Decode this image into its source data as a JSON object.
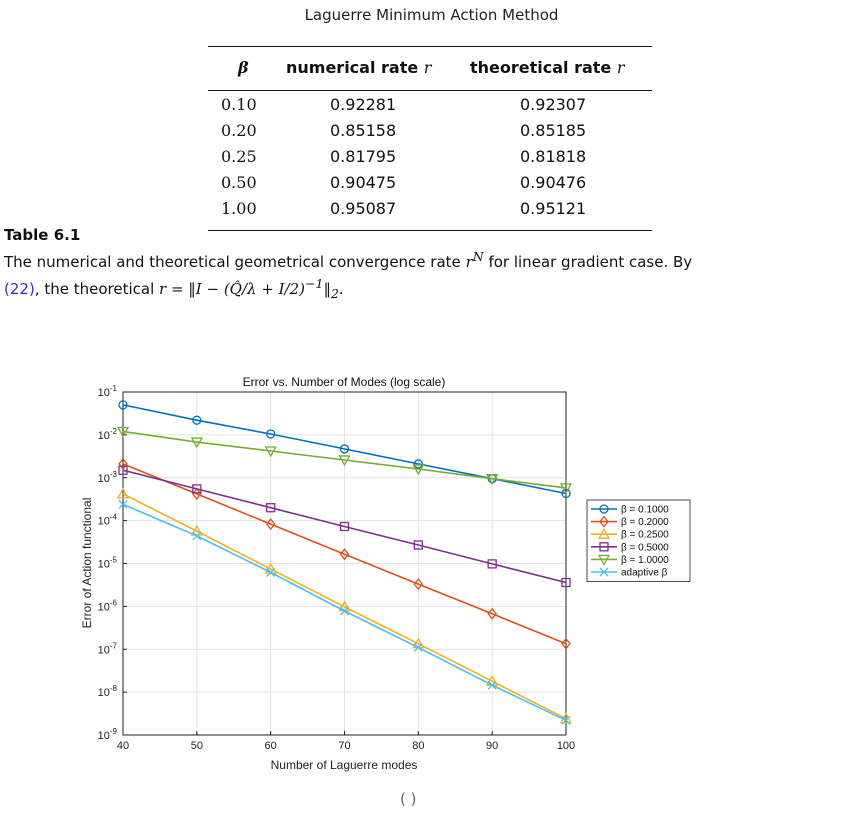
{
  "table": {
    "title": "Laguerre Minimum Action Method",
    "headers": {
      "beta": "β",
      "numerical": "numerical rate",
      "numerical_var": "r",
      "theoretical": "theoretical rate",
      "theoretical_var": "r"
    },
    "rows": [
      {
        "beta": "0.10",
        "numerical": "0.92281",
        "theoretical": "0.92307"
      },
      {
        "beta": "0.20",
        "numerical": "0.85158",
        "theoretical": "0.85185"
      },
      {
        "beta": "0.25",
        "numerical": "0.81795",
        "theoretical": "0.81818"
      },
      {
        "beta": "0.50",
        "numerical": "0.90475",
        "theoretical": "0.90476"
      },
      {
        "beta": "1.00",
        "numerical": "0.95087",
        "theoretical": "0.95121"
      }
    ]
  },
  "caption": {
    "label": "Table 6.1",
    "line1_pre": "The numerical and theoretical geometrical convergence rate",
    "line1_math": "r",
    "line1_sup": "N",
    "line1_post": "for linear gradient case. By",
    "line2_ref": "(22)",
    "line2_text": ", the theoretical",
    "line2_math": "r = ‖I − (Q̂/λ + I/2)",
    "line2_sup": "−1",
    "line2_end": "‖",
    "line2_sub": "2",
    "line2_period": "."
  },
  "chart_data": {
    "type": "line",
    "title": "Error vs. Number of Modes (log scale)",
    "xlabel": "Number of Laguerre modes",
    "ylabel": "Error of Action functional",
    "x": [
      40,
      50,
      60,
      70,
      80,
      90,
      100
    ],
    "xlim": [
      40,
      100
    ],
    "ylim": [
      1e-09,
      0.1
    ],
    "yscale": "log",
    "grid": true,
    "legend_position": "right",
    "x_ticks": [
      "40",
      "50",
      "60",
      "70",
      "80",
      "90",
      "100"
    ],
    "y_ticks": [
      {
        "exp": -9,
        "label": "10",
        "sup": "-9"
      },
      {
        "exp": -8,
        "label": "10",
        "sup": "-8"
      },
      {
        "exp": -7,
        "label": "10",
        "sup": "-7"
      },
      {
        "exp": -6,
        "label": "10",
        "sup": "-6"
      },
      {
        "exp": -5,
        "label": "10",
        "sup": "-5"
      },
      {
        "exp": -4,
        "label": "10",
        "sup": "-4"
      },
      {
        "exp": -3,
        "label": "10",
        "sup": "-3"
      },
      {
        "exp": -2,
        "label": "10",
        "sup": "-2"
      },
      {
        "exp": -1,
        "label": "10",
        "sup": "-1"
      }
    ],
    "series": [
      {
        "name": "β = 0.1000",
        "color": "#0072BD",
        "marker": "circle",
        "values": [
          0.05,
          0.022,
          0.0105,
          0.0047,
          0.0021,
          0.00095,
          0.00043
        ]
      },
      {
        "name": "β = 0.2000",
        "color": "#D95319",
        "marker": "diamond",
        "values": [
          0.0021,
          0.00042,
          8.3e-05,
          1.65e-05,
          3.3e-06,
          6.7e-07,
          1.35e-07
        ]
      },
      {
        "name": "β = 0.2500",
        "color": "#EDB120",
        "marker": "triangle-up",
        "values": [
          0.00042,
          5.7e-05,
          7.4e-06,
          9.8e-07,
          1.35e-07,
          1.8e-08,
          2.4e-09
        ]
      },
      {
        "name": "β = 0.5000",
        "color": "#7E2F8E",
        "marker": "square",
        "values": [
          0.0015,
          0.00055,
          0.0002,
          7.3e-05,
          2.7e-05,
          9.8e-06,
          3.6e-06
        ]
      },
      {
        "name": "β = 1.0000",
        "color": "#77AC30",
        "marker": "triangle-down",
        "values": [
          0.012,
          0.0068,
          0.0042,
          0.0026,
          0.0016,
          0.00095,
          0.00058
        ]
      },
      {
        "name": "adaptive β",
        "color": "#4DBEEE",
        "marker": "x",
        "values": [
          0.00024,
          4.4e-05,
          6.2e-06,
          7.8e-07,
          1.1e-07,
          1.45e-08,
          2.2e-09
        ]
      }
    ]
  },
  "footer": {
    "text": "(                    )"
  }
}
